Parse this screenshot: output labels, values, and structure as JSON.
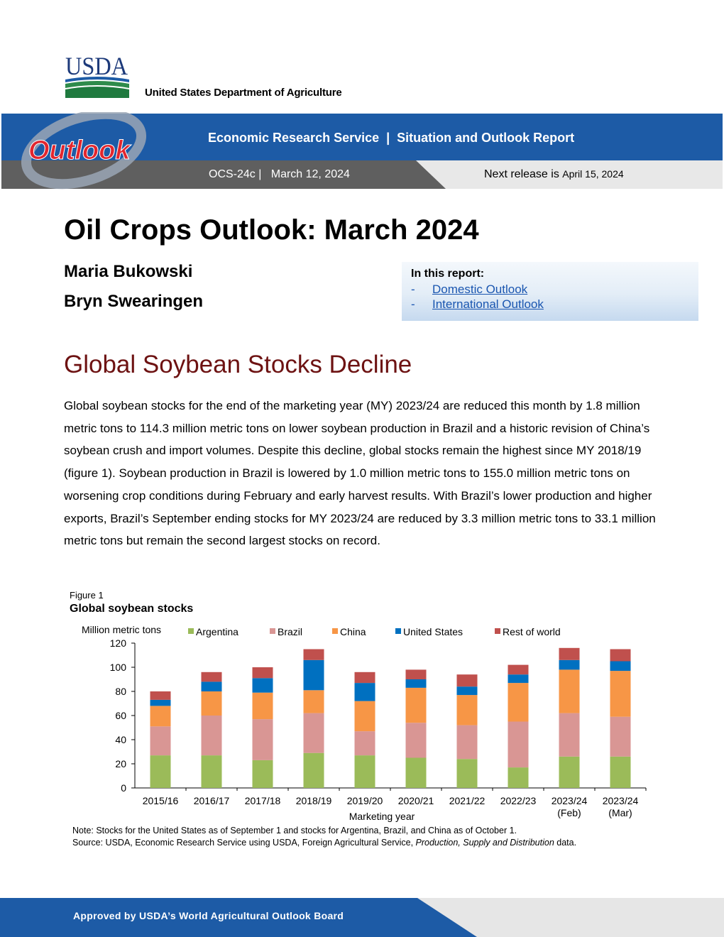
{
  "header": {
    "logo_text": "USDA",
    "agency": "United States Department of Agriculture",
    "banner_title": "Economic Research Service  |  Situation and Outlook Report",
    "outlook_logo_text": "Outlook",
    "report_code": "OCS-24c |   March 12, 2024",
    "next_release_label": "Next release is ",
    "next_release_date": "April 15, 2024",
    "colors": {
      "banner": "#1d5ba6",
      "release_bar_dark": "#5f5f5f",
      "release_bar_light": "#e8e8e8",
      "outlook_red": "#e2262e"
    }
  },
  "title": {
    "report_title": "Oil Crops Outlook: March 2024",
    "authors": [
      "Maria Bukowski",
      "Bryn Swearingen"
    ]
  },
  "toc": {
    "heading": "In this report:",
    "items": [
      {
        "dash": "-",
        "label": "Domestic Outlook"
      },
      {
        "dash": "-",
        "label": "International Outlook"
      }
    ]
  },
  "section": {
    "heading": "Global Soybean Stocks Decline",
    "paragraph": "Global soybean stocks for the end of the marketing year (MY) 2023/24 are reduced this month by 1.8 million metric tons to 114.3 million metric tons on lower soybean production in Brazil and a historic revision of China’s soybean crush and import volumes. Despite this decline, global stocks remain the highest since MY 2018/19 (figure 1). Soybean production in Brazil is lowered by 1.0 million metric tons to 155.0 million metric tons on worsening crop conditions during February and early harvest results. With Brazil’s lower production and higher exports, Brazil’s September ending stocks for MY 2023/24 are reduced by 3.3 million metric tons to 33.1 million metric tons but remain the second largest stocks on record."
  },
  "figure": {
    "label": "Figure 1",
    "title": "Global soybean stocks",
    "note": "Note: Stocks for the United States as of September 1 and stocks for Argentina, Brazil, and China as of October 1.",
    "source_prefix": "Source: USDA, Economic Research Service using USDA, Foreign Agricultural Service, ",
    "source_italic": "Production, Supply and Distribution",
    "source_suffix": " data."
  },
  "chart_data": {
    "type": "bar",
    "stacked": true,
    "ylabel": "Million metric tons",
    "xlabel": "Marketing year",
    "ylim": [
      0,
      120
    ],
    "yticks": [
      0,
      20,
      40,
      60,
      80,
      100,
      120
    ],
    "grid": false,
    "legend_position": "top",
    "categories": [
      [
        "2015/16"
      ],
      [
        "2016/17"
      ],
      [
        "2017/18"
      ],
      [
        "2018/19"
      ],
      [
        "2019/20"
      ],
      [
        "2020/21"
      ],
      [
        "2021/22"
      ],
      [
        "2022/23"
      ],
      [
        "2023/24",
        "(Feb)"
      ],
      [
        "2023/24",
        "(Mar)"
      ]
    ],
    "series": [
      {
        "name": "Argentina",
        "color": "#9bbb59",
        "values": [
          27,
          27,
          23,
          29,
          27,
          25,
          24,
          17,
          26,
          26
        ]
      },
      {
        "name": "Brazil",
        "color": "#d99694",
        "values": [
          24,
          33,
          34,
          33,
          20,
          29,
          28,
          38,
          36,
          33
        ]
      },
      {
        "name": "China",
        "color": "#f79646",
        "values": [
          17,
          20,
          22,
          19,
          25,
          29,
          25,
          32,
          36,
          38
        ]
      },
      {
        "name": "United States",
        "color": "#0070c0",
        "values": [
          5,
          8,
          12,
          25,
          15,
          7,
          7,
          7,
          8,
          8
        ]
      },
      {
        "name": "Rest of world",
        "color": "#c0504d",
        "values": [
          7,
          8,
          9,
          9,
          9,
          8,
          10,
          8,
          10,
          10
        ]
      }
    ]
  },
  "footer": {
    "text": "Approved by USDA’s World Agricultural Outlook Board",
    "colors": {
      "blue": "#1d5ba6",
      "gray": "#e6e6e6"
    }
  }
}
